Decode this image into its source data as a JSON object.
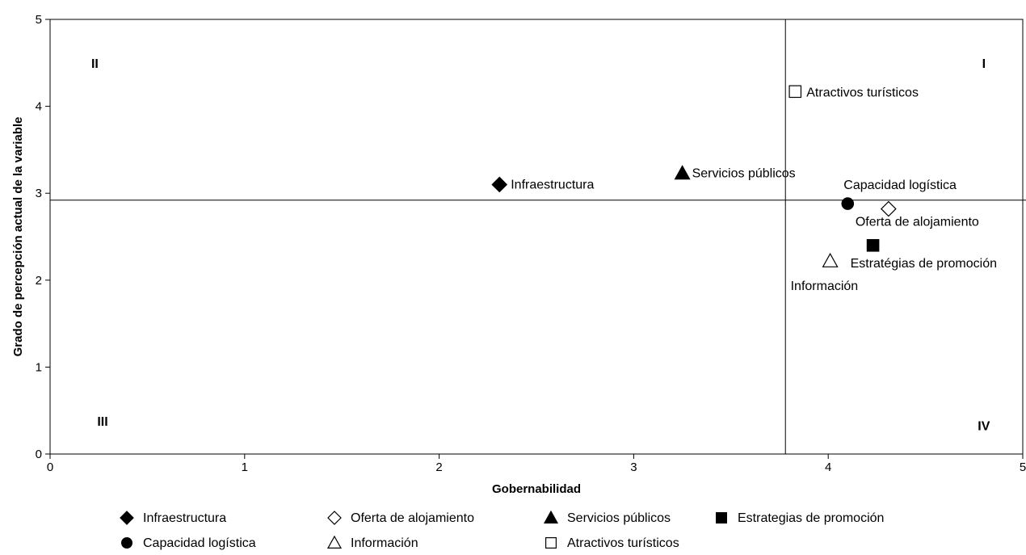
{
  "chart_data": {
    "type": "scatter",
    "title": "",
    "xlabel": "Gobernabilidad",
    "ylabel": "Grado de percepción actual de la variable",
    "xlim": [
      0,
      5
    ],
    "ylim": [
      0,
      5
    ],
    "xticks": [
      "0",
      "1",
      "2",
      "3",
      "4",
      "5"
    ],
    "yticks": [
      "0",
      "1",
      "2",
      "3",
      "4",
      "5"
    ],
    "grid": false,
    "legend_position": "bottom",
    "reference_lines": {
      "x": 3.78,
      "y": 2.92
    },
    "quadrants": [
      {
        "label": "I",
        "x": 4.8,
        "y": 4.5
      },
      {
        "label": "II",
        "x": 0.23,
        "y": 4.5
      },
      {
        "label": "III",
        "x": 0.27,
        "y": 0.38
      },
      {
        "label": "IV",
        "x": 4.8,
        "y": 0.33
      }
    ],
    "series": [
      {
        "name": "Infraestructura",
        "marker": "diamond-filled",
        "x": 2.31,
        "y": 3.1,
        "point_label": "Infraestructura"
      },
      {
        "name": "Oferta de alojamiento",
        "marker": "diamond-open",
        "x": 4.31,
        "y": 2.82,
        "point_label": "Oferta de alojamiento"
      },
      {
        "name": "Servicios públicos",
        "marker": "triangle-filled",
        "x": 3.25,
        "y": 3.23,
        "point_label": "Servicios públicos"
      },
      {
        "name": "Estrategias de promoción",
        "marker": "square-filled",
        "x": 4.23,
        "y": 2.4,
        "point_label": "Estratégias de promoción"
      },
      {
        "name": "Capacidad logística",
        "marker": "circle-filled",
        "x": 4.1,
        "y": 2.88,
        "point_label": "Capacidad logística"
      },
      {
        "name": "Información",
        "marker": "triangle-open",
        "x": 4.01,
        "y": 2.22,
        "point_label": "Información"
      },
      {
        "name": "Atractivos turísticos",
        "marker": "square-open",
        "x": 3.83,
        "y": 4.17,
        "point_label": "Atractivos turísticos"
      }
    ]
  }
}
